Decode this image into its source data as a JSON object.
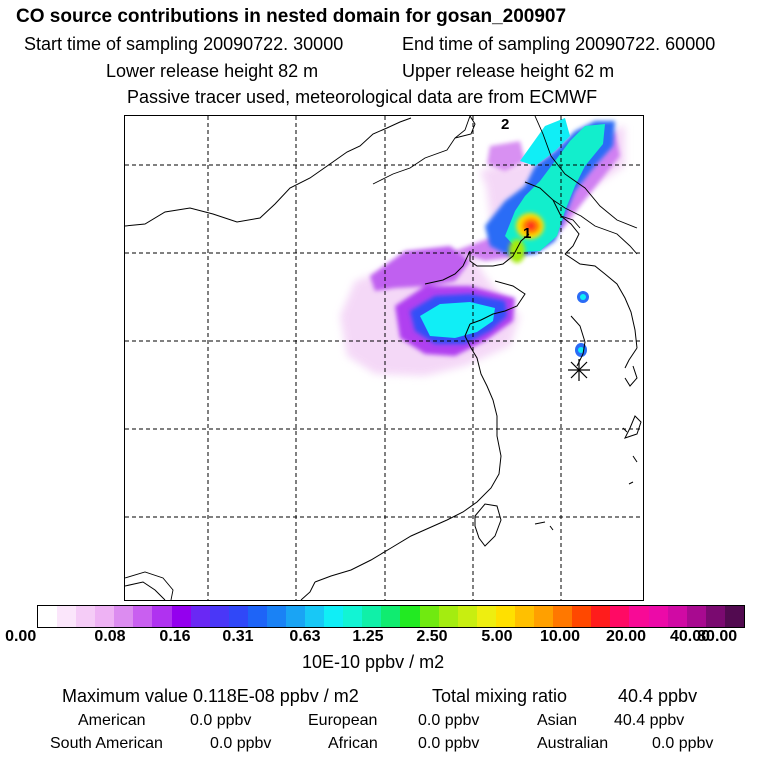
{
  "header": {
    "title": "CO  source contributions in nested domain for gosan_200907",
    "start_time": "Start time of sampling 20090722. 30000",
    "end_time": "End time of sampling 20090722. 60000",
    "lower_release": "Lower release height   82 m",
    "upper_release": "Upper release height   62 m",
    "tracer_info": "Passive tracer used, meteorological data are from ECMWF"
  },
  "map": {
    "marker_1": "1",
    "marker_2": "2",
    "station_symbol": "asterisk-icon"
  },
  "colorbar": {
    "ticks": [
      "0.00",
      "0.08",
      "0.16",
      "0.31",
      "0.63",
      "1.25",
      "2.50",
      "5.00",
      "10.00",
      "20.00",
      "40.00",
      "80.00"
    ],
    "colors": [
      "#ffffff",
      "#fbe6fb",
      "#f5ccf7",
      "#eeb2f4",
      "#dc8cf0",
      "#c95ff0",
      "#b032f0",
      "#9400ee",
      "#6a28f4",
      "#4a37f7",
      "#3048f8",
      "#1e64f7",
      "#1a82f5",
      "#1aa4f4",
      "#18c8f6",
      "#10eef6",
      "#12f4d4",
      "#10f0a8",
      "#10ec70",
      "#22ea22",
      "#70ea10",
      "#a4ec10",
      "#c8ee10",
      "#eeee10",
      "#ffe000",
      "#ffc000",
      "#ffa000",
      "#ff7800",
      "#ff4800",
      "#ff1c1c",
      "#ff0a64",
      "#f80a96",
      "#ec0aa8",
      "#d00aa4",
      "#a80a90",
      "#7a0a70",
      "#520a50"
    ],
    "units": "10E-10 ppbv / m2"
  },
  "summary": {
    "maximum_value": "Maximum value  0.118E-08 ppbv / m2",
    "total_label": "Total mixing ratio",
    "total_value": "40.4 ppbv"
  },
  "regions": {
    "american": {
      "label": "American",
      "value": "0.0 ppbv"
    },
    "european": {
      "label": "European",
      "value": "0.0 ppbv"
    },
    "asian": {
      "label": "Asian",
      "value": "40.4 ppbv"
    },
    "south_american": {
      "label": "South American",
      "value": "0.0 ppbv"
    },
    "african": {
      "label": "African",
      "value": "0.0 ppbv"
    },
    "australian": {
      "label": "Australian",
      "value": "0.0 ppbv"
    }
  }
}
